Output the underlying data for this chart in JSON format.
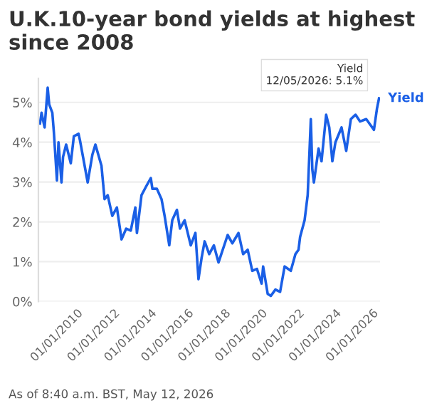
{
  "chart_data": {
    "type": "line",
    "title": "U.K.10-year bond yields at highest since 2008",
    "x": [
      "2008-01",
      "2008-02",
      "2008-04",
      "2008-06",
      "2008-07",
      "2008-09",
      "2008-10",
      "2008-12",
      "2009-01",
      "2009-03",
      "2009-04",
      "2009-06",
      "2009-09",
      "2009-11",
      "2010-02",
      "2010-03",
      "2010-05",
      "2010-08",
      "2010-11",
      "2011-01",
      "2011-05",
      "2011-07",
      "2011-09",
      "2011-12",
      "2012-03",
      "2012-06",
      "2012-09",
      "2012-12",
      "2013-03",
      "2013-04",
      "2013-07",
      "2013-10",
      "2014-01",
      "2014-02",
      "2014-05",
      "2014-08",
      "2014-10",
      "2015-01",
      "2015-03",
      "2015-06",
      "2015-08",
      "2015-11",
      "2016-03",
      "2016-06",
      "2016-08",
      "2016-10",
      "2016-12",
      "2017-03",
      "2017-06",
      "2017-09",
      "2018-03",
      "2018-06",
      "2018-10",
      "2019-01",
      "2019-04",
      "2019-07",
      "2019-10",
      "2020-01",
      "2020-02",
      "2020-05",
      "2020-07",
      "2020-10",
      "2021-01",
      "2021-04",
      "2021-08",
      "2021-11",
      "2022-01",
      "2022-02",
      "2022-05",
      "2022-07",
      "2022-09",
      "2022-10",
      "2022-11",
      "2023-02",
      "2023-04",
      "2023-07",
      "2023-09",
      "2023-11",
      "2024-01",
      "2024-05",
      "2024-08",
      "2024-11",
      "2025-02",
      "2025-05",
      "2025-09",
      "2025-12",
      "2026-02",
      "2026-04",
      "2026-05-12"
    ],
    "series": [
      {
        "name": "Yield",
        "color": "#1a5fe6",
        "values": [
          4.47,
          4.74,
          4.37,
          5.37,
          4.95,
          4.74,
          4.26,
          3.04,
          4.0,
          2.99,
          3.63,
          3.94,
          3.47,
          4.15,
          4.21,
          4.05,
          3.63,
          2.99,
          3.68,
          3.94,
          3.41,
          2.57,
          2.67,
          2.15,
          2.36,
          1.56,
          1.83,
          1.78,
          2.36,
          1.72,
          2.67,
          2.89,
          3.1,
          2.83,
          2.83,
          2.57,
          2.15,
          1.41,
          2.04,
          2.3,
          1.83,
          2.04,
          1.41,
          1.72,
          0.56,
          1.09,
          1.51,
          1.19,
          1.41,
          0.98,
          1.67,
          1.46,
          1.72,
          1.19,
          1.3,
          0.77,
          0.82,
          0.45,
          0.88,
          0.19,
          0.14,
          0.3,
          0.24,
          0.88,
          0.77,
          1.19,
          1.3,
          1.62,
          2.04,
          2.67,
          4.58,
          3.31,
          2.99,
          3.84,
          3.52,
          4.69,
          4.37,
          3.52,
          4.0,
          4.37,
          3.78,
          4.58,
          4.69,
          4.52,
          4.58,
          4.42,
          4.31,
          4.84,
          5.1
        ]
      }
    ],
    "xlim": [
      "2007-12",
      "2026-06"
    ],
    "xticks": [
      {
        "value": "2010-01-01",
        "label": "01/01/2010"
      },
      {
        "value": "2012-01-01",
        "label": "01/01/2012"
      },
      {
        "value": "2014-01-01",
        "label": "01/01/2014"
      },
      {
        "value": "2016-01-01",
        "label": "01/01/2016"
      },
      {
        "value": "2018-01-01",
        "label": "01/01/2018"
      },
      {
        "value": "2020-01-01",
        "label": "01/01/2020"
      },
      {
        "value": "2022-01-01",
        "label": "01/01/2022"
      },
      {
        "value": "2024-01-01",
        "label": "01/01/2024"
      },
      {
        "value": "2026-01-01",
        "label": "01/01/2026"
      }
    ],
    "ylim": [
      0,
      5.6
    ],
    "yticks": [
      {
        "value": 0,
        "label": "0%"
      },
      {
        "value": 1,
        "label": "1%"
      },
      {
        "value": 2,
        "label": "2%"
      },
      {
        "value": 3,
        "label": "3%"
      },
      {
        "value": 4,
        "label": "4%"
      },
      {
        "value": 5,
        "label": "5%"
      }
    ],
    "grid": "y",
    "annotations": [
      {
        "text": "Yield\n12/05/2026: 5.1%",
        "x": "2026-05-12",
        "y": 5.1
      },
      "As of 8:40 a.m. BST, May 12, 2026"
    ]
  }
}
